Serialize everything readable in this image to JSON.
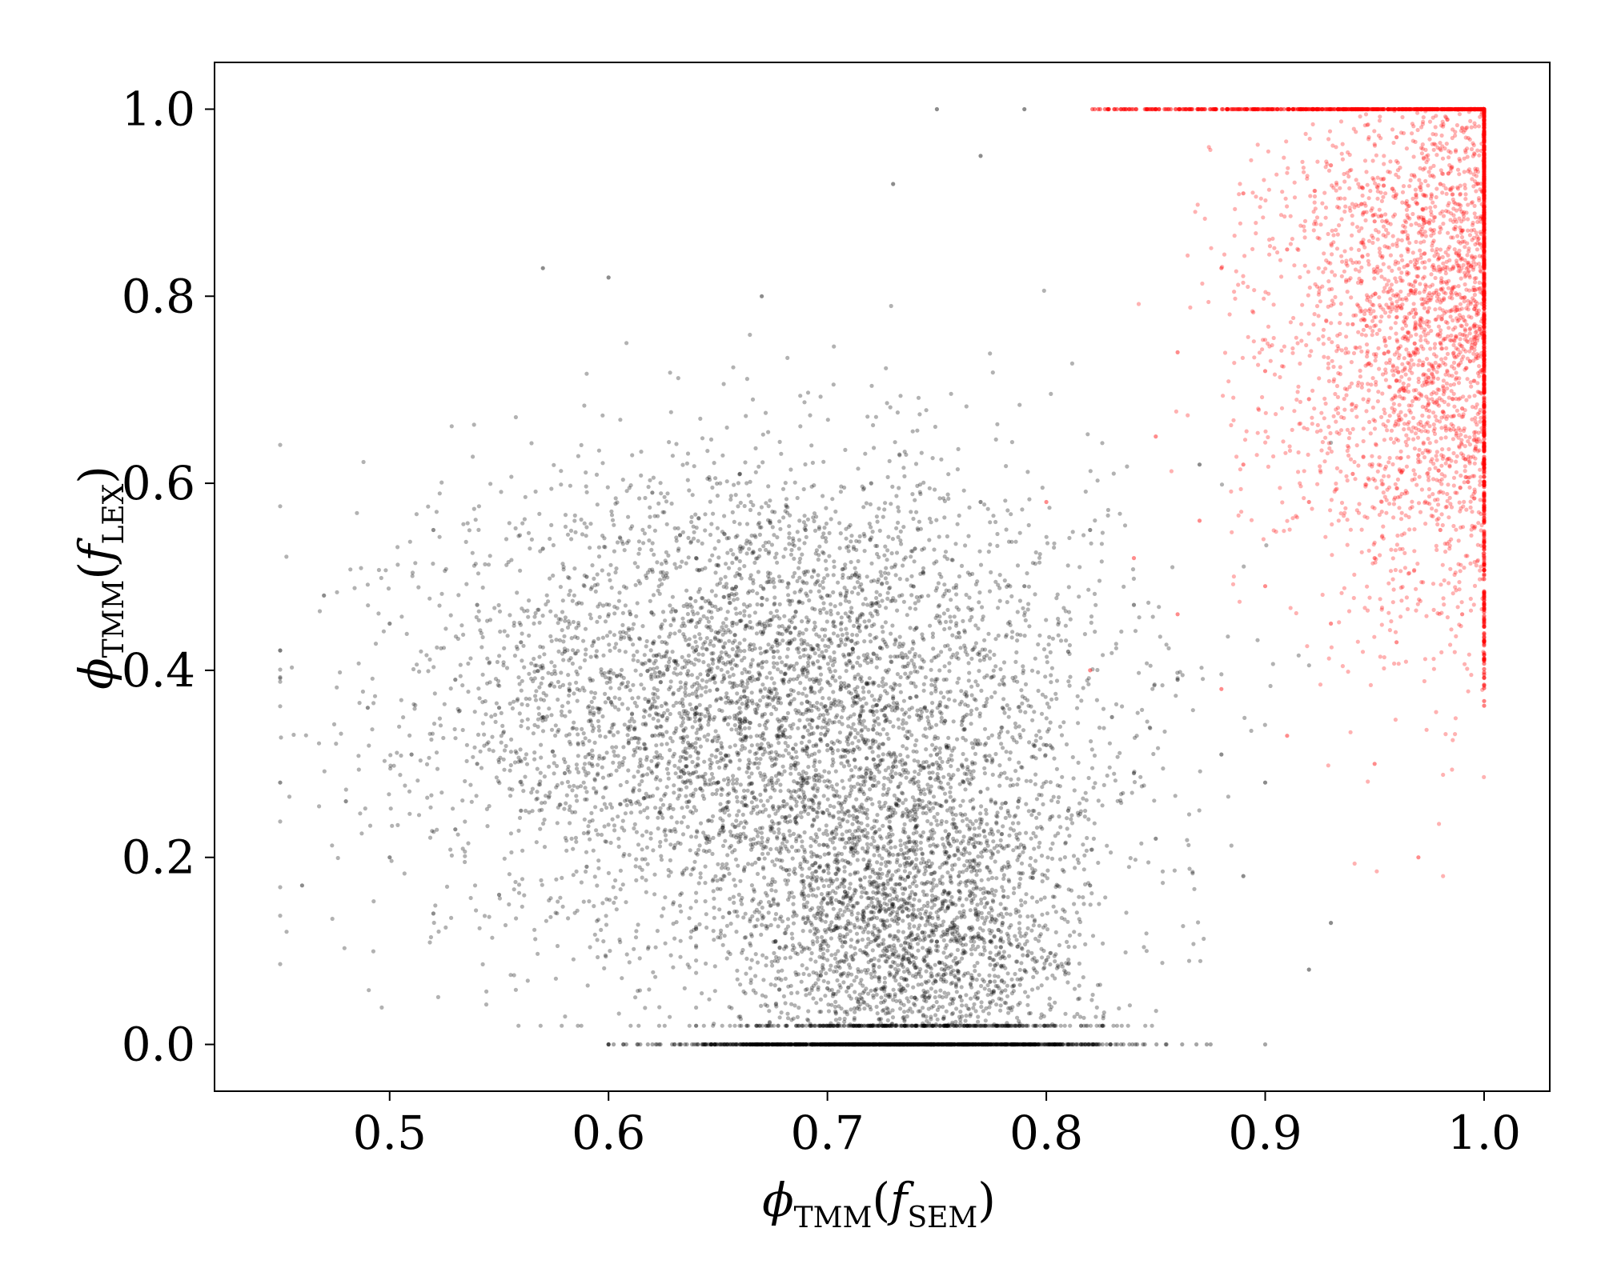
{
  "chart_data": {
    "type": "scatter",
    "title": "",
    "xlabel": {
      "main": "ϕ",
      "sub": "TMM",
      "open": "(",
      "fn": "f",
      "fnsub": "SEM",
      "close": ")"
    },
    "ylabel": {
      "main": "ϕ",
      "sub": "TMM",
      "open": "(",
      "fn": "f",
      "fnsub": "LEX",
      "close": ")"
    },
    "xlim": [
      0.42,
      1.03
    ],
    "ylim": [
      -0.05,
      1.05
    ],
    "xticks": [
      0.5,
      0.6,
      0.7,
      0.8,
      0.9,
      1.0
    ],
    "xtick_labels": [
      "0.5",
      "0.6",
      "0.7",
      "0.8",
      "0.9",
      "1.0"
    ],
    "yticks": [
      0.0,
      0.2,
      0.4,
      0.6,
      0.8,
      1.0
    ],
    "ytick_labels": [
      "0.0",
      "0.2",
      "0.4",
      "0.6",
      "0.8",
      "1.0"
    ],
    "grid": false,
    "legend": "none",
    "series": [
      {
        "color": "#000000",
        "opacity": 0.3,
        "distribution": "main cloud centered near (0.67, 0.35), dense sub-cluster near (0.74, 0.12), dense row at y = 0.0 for x in 0.64–0.89",
        "points": [
          [
            0.45,
            0.28
          ],
          [
            0.46,
            0.17
          ],
          [
            0.47,
            0.48
          ],
          [
            0.48,
            0.26
          ],
          [
            0.49,
            0.36
          ],
          [
            0.5,
            0.2
          ],
          [
            0.5,
            0.45
          ],
          [
            0.51,
            0.31
          ],
          [
            0.52,
            0.14
          ],
          [
            0.52,
            0.55
          ],
          [
            0.53,
            0.39
          ],
          [
            0.53,
            0.23
          ],
          [
            0.54,
            0.47
          ],
          [
            0.54,
            0.3
          ],
          [
            0.55,
            0.36
          ],
          [
            0.55,
            0.16
          ],
          [
            0.56,
            0.43
          ],
          [
            0.56,
            0.25
          ],
          [
            0.57,
            0.53
          ],
          [
            0.57,
            0.35
          ],
          [
            0.57,
            0.83
          ],
          [
            0.58,
            0.29
          ],
          [
            0.58,
            0.42
          ],
          [
            0.59,
            0.19
          ],
          [
            0.59,
            0.5
          ],
          [
            0.6,
            0.37
          ],
          [
            0.6,
            0.82
          ],
          [
            0.61,
            0.26
          ],
          [
            0.61,
            0.46
          ],
          [
            0.62,
            0.33
          ],
          [
            0.62,
            0.59
          ],
          [
            0.63,
            0.41
          ],
          [
            0.63,
            0.21
          ],
          [
            0.64,
            0.36
          ],
          [
            0.64,
            0.52
          ],
          [
            0.65,
            0.28
          ],
          [
            0.65,
            0.44
          ],
          [
            0.66,
            0.61
          ],
          [
            0.66,
            0.34
          ],
          [
            0.67,
            0.47
          ],
          [
            0.67,
            0.8
          ],
          [
            0.68,
            0.26
          ],
          [
            0.68,
            0.39
          ],
          [
            0.69,
            0.55
          ],
          [
            0.69,
            0.13
          ],
          [
            0.7,
            0.32
          ],
          [
            0.7,
            0.48
          ],
          [
            0.7,
            0.06
          ],
          [
            0.71,
            0.22
          ],
          [
            0.71,
            0.41
          ],
          [
            0.72,
            0.6
          ],
          [
            0.72,
            0.09
          ],
          [
            0.72,
            0.29
          ],
          [
            0.73,
            0.15
          ],
          [
            0.73,
            0.37
          ],
          [
            0.73,
            0.92
          ],
          [
            0.74,
            0.05
          ],
          [
            0.74,
            0.24
          ],
          [
            0.74,
            0.53
          ],
          [
            0.75,
            0.11
          ],
          [
            0.75,
            0.31
          ],
          [
            0.75,
            1.0
          ],
          [
            0.76,
            0.18
          ],
          [
            0.76,
            0.44
          ],
          [
            0.76,
            0.07
          ],
          [
            0.77,
            0.27
          ],
          [
            0.77,
            0.58
          ],
          [
            0.77,
            0.95
          ],
          [
            0.78,
            0.13
          ],
          [
            0.78,
            0.36
          ],
          [
            0.79,
            0.21
          ],
          [
            0.79,
            0.49
          ],
          [
            0.79,
            1.0
          ],
          [
            0.8,
            0.09
          ],
          [
            0.8,
            0.32
          ],
          [
            0.81,
            0.25
          ],
          [
            0.81,
            0.42
          ],
          [
            0.82,
            0.17
          ],
          [
            0.82,
            0.55
          ],
          [
            0.83,
            0.35
          ],
          [
            0.84,
            0.29
          ],
          [
            0.84,
            0.47
          ],
          [
            0.85,
            0.22
          ],
          [
            0.86,
            0.39
          ],
          [
            0.87,
            0.62
          ],
          [
            0.88,
            0.31
          ],
          [
            0.89,
            0.18
          ],
          [
            0.9,
            0.28
          ],
          [
            0.92,
            0.08
          ],
          [
            0.93,
            0.13
          ]
        ],
        "baseline": {
          "y": 0.0,
          "x_from": 0.6,
          "x_to": 0.9
        }
      },
      {
        "color": "#ff0000",
        "opacity": 0.3,
        "distribution": "cloud concentrated toward (1.0, 0.8), dense vertical line at x = 1.0 for y 0.35–1.0, dense row at y = 1.0 for x 0.82–1.0",
        "points": [
          [
            0.8,
            0.58
          ],
          [
            0.82,
            0.4
          ],
          [
            0.84,
            0.52
          ],
          [
            0.85,
            0.65
          ],
          [
            0.86,
            0.46
          ],
          [
            0.86,
            0.74
          ],
          [
            0.87,
            0.56
          ],
          [
            0.88,
            0.83
          ],
          [
            0.88,
            0.38
          ],
          [
            0.89,
            0.62
          ],
          [
            0.89,
            0.91
          ],
          [
            0.9,
            0.49
          ],
          [
            0.9,
            0.72
          ],
          [
            0.91,
            0.33
          ],
          [
            0.91,
            0.85
          ],
          [
            0.92,
            0.58
          ],
          [
            0.92,
            0.69
          ],
          [
            0.93,
            0.45
          ],
          [
            0.93,
            0.94
          ],
          [
            0.94,
            0.77
          ],
          [
            0.94,
            0.61
          ],
          [
            0.95,
            0.52
          ],
          [
            0.95,
            0.88
          ],
          [
            0.95,
            0.3
          ],
          [
            0.96,
            0.71
          ],
          [
            0.96,
            0.97
          ],
          [
            0.96,
            0.43
          ],
          [
            0.97,
            0.83
          ],
          [
            0.97,
            0.63
          ],
          [
            0.97,
            0.2
          ],
          [
            0.98,
            0.92
          ],
          [
            0.98,
            0.75
          ],
          [
            0.98,
            0.55
          ],
          [
            0.99,
            0.87
          ],
          [
            0.99,
            0.68
          ],
          [
            0.99,
            0.98
          ],
          [
            0.99,
            0.46
          ],
          [
            1.0,
            0.8
          ],
          [
            1.0,
            0.92
          ],
          [
            1.0,
            0.64
          ]
        ],
        "edge_x": {
          "x": 1.0,
          "y_from": 0.35,
          "y_to": 1.0
        },
        "edge_y": {
          "y": 1.0,
          "x_from": 0.82,
          "x_to": 1.0
        }
      }
    ]
  }
}
